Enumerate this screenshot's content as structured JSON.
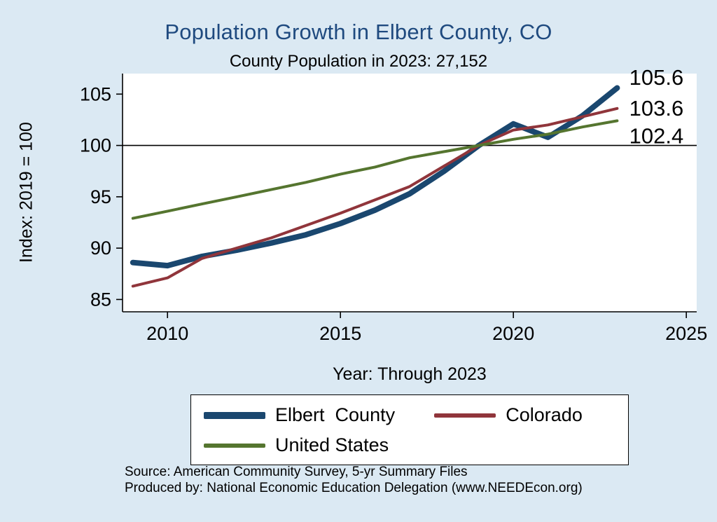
{
  "title": "Population Growth in Elbert County, CO",
  "subtitle": "County Population in 2023: 27,152",
  "chart_data": {
    "type": "line",
    "title": "Population Growth in Elbert County, CO",
    "subtitle": "County Population in 2023: 27,152",
    "xlabel": "Year: Through 2023",
    "ylabel": "Index: 2019 = 100",
    "x": [
      2009,
      2010,
      2011,
      2012,
      2013,
      2014,
      2015,
      2016,
      2017,
      2018,
      2019,
      2020,
      2021,
      2022,
      2023
    ],
    "series": [
      {
        "name": "Elbert  County",
        "color": "#1a476f",
        "width": 8,
        "values": [
          88.6,
          88.3,
          89.2,
          89.8,
          90.5,
          91.3,
          92.4,
          93.7,
          95.3,
          97.5,
          100.0,
          102.1,
          100.8,
          102.9,
          105.6
        ]
      },
      {
        "name": "Colorado",
        "color": "#90353b",
        "width": 4,
        "values": [
          86.3,
          87.1,
          89.0,
          90.0,
          91.0,
          92.2,
          93.4,
          94.7,
          96.0,
          98.0,
          100.0,
          101.5,
          102.0,
          102.8,
          103.6
        ]
      },
      {
        "name": "United States",
        "color": "#55752f",
        "width": 4,
        "values": [
          92.9,
          93.6,
          94.3,
          95.0,
          95.7,
          96.4,
          97.2,
          97.9,
          98.8,
          99.4,
          100.0,
          100.6,
          101.1,
          101.8,
          102.4
        ]
      }
    ],
    "end_labels": [
      {
        "text": "105.6",
        "x": 2023.35,
        "y": 106.6
      },
      {
        "text": "103.6",
        "x": 2023.35,
        "y": 103.6
      },
      {
        "text": "102.4",
        "x": 2023.35,
        "y": 100.9
      }
    ],
    "ref_line": 100,
    "xlim": [
      2008.7,
      2025.3
    ],
    "ylim": [
      83.8,
      107.0
    ],
    "xticks": [
      2010,
      2015,
      2020,
      2025
    ],
    "yticks": [
      85,
      90,
      95,
      100,
      105
    ],
    "grid": false,
    "legend_position": "bottom"
  },
  "footer": {
    "source": "Source: American Community Survey, 5-yr Summary Files",
    "produced_by": "Produced by: National Economic Education Delegation (www.NEEDEcon.org)"
  }
}
